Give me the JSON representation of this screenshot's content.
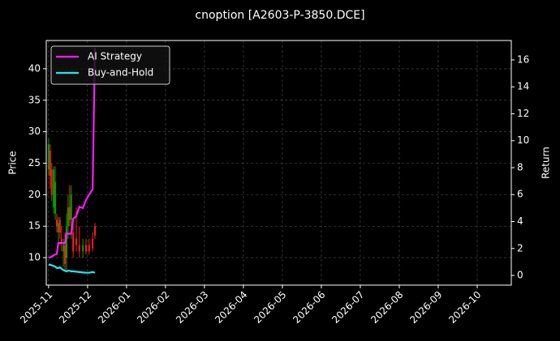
{
  "chart_data": {
    "type": "candlestick",
    "title": "cnoption [A2603-P-3850.DCE]",
    "ylabel": "Price",
    "y2label": "Return",
    "x": [
      0,
      0.04,
      0.08,
      0.13,
      0.17,
      0.21,
      0.25,
      0.29,
      0.33,
      0.38,
      0.42,
      0.46,
      0.5,
      0.54,
      0.58,
      0.63,
      0.71,
      0.79,
      0.88,
      0.96,
      1.04,
      1.13,
      1.19
    ],
    "open": [
      24,
      27,
      24,
      18,
      17,
      16,
      14,
      16,
      13,
      11,
      12,
      10,
      15,
      18,
      16,
      14,
      13,
      12,
      11,
      12,
      12,
      13,
      15
    ],
    "high": [
      29,
      28,
      25,
      24.5,
      24.5,
      17,
      16.5,
      16.5,
      15,
      13,
      14,
      17,
      20,
      21.5,
      21.5,
      16,
      18,
      15,
      13,
      13,
      13,
      14,
      15.5
    ],
    "low": [
      23,
      21,
      19,
      17,
      16,
      14,
      12,
      13,
      11,
      8.5,
      8,
      8,
      13,
      15,
      13,
      10,
      11,
      10,
      10,
      10.5,
      10.5,
      11,
      13
    ],
    "close": [
      28,
      23,
      20,
      24,
      22,
      15,
      15.5,
      14,
      12.5,
      12,
      9,
      15,
      18,
      16,
      20,
      11,
      12,
      11,
      12,
      11,
      11,
      11.5,
      13.5
    ],
    "up_color": "#00a000",
    "down_color": "#ff1a1a",
    "series": [
      {
        "name": "AI Strategy",
        "color": "#ff1aff",
        "axis": "y2",
        "values": [
          1.3,
          1.35,
          1.4,
          1.5,
          1.55,
          1.6,
          2.4,
          2.4,
          2.4,
          2.4,
          2.4,
          3.1,
          3.1,
          3.1,
          3.1,
          4.2,
          4.4,
          5.1,
          5.0,
          5.6,
          6.0,
          6.4,
          16.9
        ]
      },
      {
        "name": "Buy-and-Hold",
        "color": "#22e5ee",
        "axis": "y2",
        "values": [
          0.8,
          0.8,
          0.75,
          0.7,
          0.65,
          0.55,
          0.55,
          0.6,
          0.5,
          0.4,
          0.35,
          0.3,
          0.35,
          0.35,
          0.3,
          0.3,
          0.28,
          0.25,
          0.22,
          0.2,
          0.2,
          0.25,
          0.2
        ]
      }
    ],
    "xlim": [
      -0.06,
      11.875
    ],
    "xticks": [
      {
        "value": 0,
        "label": "2025-11"
      },
      {
        "value": 1,
        "label": "2025-12"
      },
      {
        "value": 2,
        "label": "2026-01"
      },
      {
        "value": 3,
        "label": "2026-02"
      },
      {
        "value": 4,
        "label": "2026-03"
      },
      {
        "value": 5,
        "label": "2026-04"
      },
      {
        "value": 6,
        "label": "2026-05"
      },
      {
        "value": 7,
        "label": "2026-06"
      },
      {
        "value": 8,
        "label": "2026-07"
      },
      {
        "value": 9,
        "label": "2026-08"
      },
      {
        "value": 10,
        "label": "2026-09"
      },
      {
        "value": 11,
        "label": "2026-10"
      }
    ],
    "ylim": [
      5.64,
      44.49
    ],
    "yticks": [
      10,
      15,
      20,
      25,
      30,
      35,
      40
    ],
    "y2lim": [
      -0.72,
      17.44
    ],
    "y2ticks": [
      0,
      2,
      4,
      6,
      8,
      10,
      12,
      14,
      16
    ],
    "grid": true,
    "legend": "upper left"
  }
}
